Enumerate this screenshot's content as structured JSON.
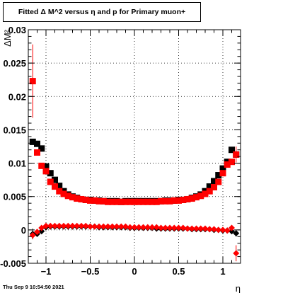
{
  "chart_data": {
    "type": "scatter",
    "title": "Fitted Δ M^2 versus η and p for Primary muon+",
    "xlabel": "η",
    "ylabel": "ΔM²",
    "xlim": [
      -1.2,
      1.2
    ],
    "ylim": [
      -0.005,
      0.03
    ],
    "grid": true,
    "x_ticks": [
      -1,
      -0.5,
      0,
      0.5,
      1
    ],
    "x_tick_labels": [
      "−1",
      "−0.5",
      "0",
      "0.5",
      "1"
    ],
    "y_ticks": [
      -0.005,
      0,
      0.005,
      0.01,
      0.015,
      0.02,
      0.025,
      0.03
    ],
    "y_tick_labels": [
      "-0.005",
      "0",
      "0.005",
      "0.01",
      "0.015",
      "0.02",
      "0.025",
      "0.03"
    ],
    "series": [
      {
        "marker": "square",
        "color": "#000000",
        "x": [
          -1.15,
          -1.1,
          -1.05,
          -1.0,
          -0.95,
          -0.9,
          -0.85,
          -0.8,
          -0.75,
          -0.7,
          -0.65,
          -0.6,
          -0.55,
          -0.5,
          -0.45,
          -0.4,
          -0.35,
          -0.3,
          -0.25,
          -0.2,
          -0.15,
          -0.1,
          -0.05,
          0.0,
          0.05,
          0.1,
          0.15,
          0.2,
          0.25,
          0.3,
          0.35,
          0.4,
          0.45,
          0.5,
          0.55,
          0.6,
          0.65,
          0.7,
          0.75,
          0.8,
          0.85,
          0.9,
          0.95,
          1.0,
          1.05,
          1.1,
          1.15
        ],
        "y": [
          0.0132,
          0.0129,
          0.0122,
          0.0095,
          0.0085,
          0.0075,
          0.0066,
          0.0058,
          0.0053,
          0.005,
          0.0048,
          0.0046,
          0.0045,
          0.0045,
          0.0044,
          0.0044,
          0.0043,
          0.0043,
          0.0043,
          0.0043,
          0.0042,
          0.0043,
          0.0043,
          0.0043,
          0.0043,
          0.0043,
          0.0043,
          0.0043,
          0.0043,
          0.0043,
          0.0044,
          0.0044,
          0.0044,
          0.0045,
          0.0045,
          0.0046,
          0.0048,
          0.005,
          0.0053,
          0.0058,
          0.0065,
          0.0073,
          0.0082,
          0.0092,
          0.0102,
          0.012,
          0.0113
        ],
        "err": [
          0.0004,
          0.0003,
          0.0003,
          0.0003,
          0.0002,
          0.0002,
          0.0002,
          0.0002,
          0.0002,
          0.0002,
          0.0002,
          0.0002,
          0.0002,
          0.0002,
          0.0002,
          0.0002,
          0.0002,
          0.0002,
          0.0002,
          0.0002,
          0.0002,
          0.0002,
          0.0002,
          0.0002,
          0.0002,
          0.0002,
          0.0002,
          0.0002,
          0.0002,
          0.0002,
          0.0002,
          0.0002,
          0.0002,
          0.0002,
          0.0002,
          0.0002,
          0.0002,
          0.0002,
          0.0002,
          0.0002,
          0.0002,
          0.0002,
          0.0002,
          0.0002,
          0.0003,
          0.0003,
          0.0004
        ]
      },
      {
        "marker": "square",
        "color": "#ff0000",
        "x": [
          -1.15,
          -1.1,
          -1.05,
          -1.0,
          -0.95,
          -0.9,
          -0.85,
          -0.8,
          -0.75,
          -0.7,
          -0.65,
          -0.6,
          -0.55,
          -0.5,
          -0.45,
          -0.4,
          -0.35,
          -0.3,
          -0.25,
          -0.2,
          -0.15,
          -0.1,
          -0.05,
          0.0,
          0.05,
          0.1,
          0.15,
          0.2,
          0.25,
          0.3,
          0.35,
          0.4,
          0.45,
          0.5,
          0.55,
          0.6,
          0.65,
          0.7,
          0.75,
          0.8,
          0.85,
          0.9,
          0.95,
          1.0,
          1.05,
          1.1,
          1.15
        ],
        "y": [
          0.0223,
          0.0116,
          0.0096,
          0.0088,
          0.0072,
          0.0065,
          0.0058,
          0.0054,
          0.0051,
          0.0049,
          0.0047,
          0.0046,
          0.0045,
          0.0044,
          0.0044,
          0.0043,
          0.0043,
          0.0042,
          0.0042,
          0.0042,
          0.0042,
          0.0042,
          0.0042,
          0.0042,
          0.0042,
          0.0042,
          0.0042,
          0.0042,
          0.0042,
          0.0043,
          0.0043,
          0.0043,
          0.0044,
          0.0044,
          0.0045,
          0.0046,
          0.0047,
          0.0049,
          0.0051,
          0.0054,
          0.0058,
          0.0064,
          0.0072,
          0.0085,
          0.0098,
          0.0102,
          0.0113
        ],
        "err": [
          0.0055,
          0.0004,
          0.0003,
          0.0003,
          0.0002,
          0.0002,
          0.0002,
          0.0002,
          0.0002,
          0.0002,
          0.0002,
          0.0002,
          0.0002,
          0.0002,
          0.0002,
          0.0002,
          0.0002,
          0.0002,
          0.0002,
          0.0002,
          0.0002,
          0.0002,
          0.0002,
          0.0002,
          0.0002,
          0.0002,
          0.0002,
          0.0002,
          0.0002,
          0.0002,
          0.0002,
          0.0002,
          0.0002,
          0.0002,
          0.0002,
          0.0002,
          0.0002,
          0.0002,
          0.0002,
          0.0002,
          0.0002,
          0.0002,
          0.0002,
          0.0003,
          0.0003,
          0.0004,
          0.0012
        ]
      },
      {
        "marker": "diamond",
        "color": "#000000",
        "x": [
          -1.15,
          -1.1,
          -1.05,
          -1.0,
          -0.95,
          -0.9,
          -0.85,
          -0.8,
          -0.75,
          -0.7,
          -0.65,
          -0.6,
          -0.55,
          -0.5,
          -0.45,
          -0.4,
          -0.35,
          -0.3,
          -0.25,
          -0.2,
          -0.15,
          -0.1,
          -0.05,
          0.0,
          0.05,
          0.1,
          0.15,
          0.2,
          0.25,
          0.3,
          0.35,
          0.4,
          0.45,
          0.5,
          0.55,
          0.6,
          0.65,
          0.7,
          0.75,
          0.8,
          0.85,
          0.9,
          0.95,
          1.0,
          1.05,
          1.1,
          1.15
        ],
        "y": [
          -0.0006,
          -0.0006,
          -0.0002,
          0.0004,
          0.0005,
          0.0005,
          0.0005,
          0.0005,
          0.0005,
          0.0005,
          0.0005,
          0.0005,
          0.0005,
          0.0005,
          0.0005,
          0.0004,
          0.0004,
          0.0004,
          0.0004,
          0.0004,
          0.0004,
          0.0004,
          0.0003,
          0.0003,
          0.0003,
          0.0003,
          0.0003,
          0.0003,
          0.0002,
          0.0002,
          0.0002,
          0.0002,
          0.0002,
          0.0002,
          0.0002,
          0.0002,
          0.0001,
          0.0001,
          0.0001,
          0.0001,
          0.0001,
          0.0,
          0.0,
          -0.0001,
          -0.0001,
          -0.0002,
          -0.0005
        ],
        "err": [
          0.0008,
          0.0004,
          0.0002,
          0.0001,
          0.0001,
          0.0001,
          0.0001,
          0.0001,
          0.0001,
          0.0001,
          0.0001,
          0.0001,
          0.0001,
          0.0001,
          0.0001,
          0.0001,
          0.0001,
          0.0001,
          0.0001,
          0.0001,
          0.0001,
          0.0001,
          0.0001,
          0.0001,
          0.0001,
          0.0001,
          0.0001,
          0.0001,
          0.0001,
          0.0001,
          0.0001,
          0.0001,
          0.0001,
          0.0001,
          0.0001,
          0.0001,
          0.0001,
          0.0001,
          0.0001,
          0.0001,
          0.0001,
          0.0001,
          0.0001,
          0.0001,
          0.0001,
          0.0002,
          0.0005
        ]
      },
      {
        "marker": "diamond",
        "color": "#ff0000",
        "x": [
          -1.15,
          -1.1,
          -1.05,
          -1.0,
          -0.95,
          -0.9,
          -0.85,
          -0.8,
          -0.75,
          -0.7,
          -0.65,
          -0.6,
          -0.55,
          -0.5,
          -0.45,
          -0.4,
          -0.35,
          -0.3,
          -0.25,
          -0.2,
          -0.15,
          -0.1,
          -0.05,
          0.0,
          0.05,
          0.1,
          0.15,
          0.2,
          0.25,
          0.3,
          0.35,
          0.4,
          0.45,
          0.5,
          0.55,
          0.6,
          0.65,
          0.7,
          0.75,
          0.8,
          0.85,
          0.9,
          0.95,
          1.0,
          1.05,
          1.1,
          1.15
        ],
        "y": [
          -0.0008,
          -0.0003,
          0.0003,
          0.0006,
          0.0006,
          0.0006,
          0.0006,
          0.0006,
          0.0006,
          0.0006,
          0.0006,
          0.0006,
          0.0006,
          0.0005,
          0.0005,
          0.0005,
          0.0005,
          0.0005,
          0.0005,
          0.0005,
          0.0005,
          0.0005,
          0.0004,
          0.0004,
          0.0004,
          0.0004,
          0.0004,
          0.0004,
          0.0004,
          0.0003,
          0.0003,
          0.0003,
          0.0003,
          0.0003,
          0.0003,
          0.0002,
          0.0002,
          0.0002,
          0.0002,
          0.0002,
          0.0001,
          0.0001,
          0.0,
          0.0,
          -0.0001,
          0.0003,
          -0.0035
        ],
        "err": [
          0.0006,
          0.0003,
          0.0002,
          0.0001,
          0.0001,
          0.0001,
          0.0001,
          0.0001,
          0.0001,
          0.0001,
          0.0001,
          0.0001,
          0.0001,
          0.0001,
          0.0001,
          0.0001,
          0.0001,
          0.0001,
          0.0001,
          0.0001,
          0.0001,
          0.0001,
          0.0001,
          0.0001,
          0.0001,
          0.0001,
          0.0001,
          0.0001,
          0.0001,
          0.0001,
          0.0001,
          0.0001,
          0.0001,
          0.0001,
          0.0001,
          0.0001,
          0.0001,
          0.0001,
          0.0001,
          0.0001,
          0.0001,
          0.0001,
          0.0001,
          0.0001,
          0.0001,
          0.0003,
          0.0012
        ]
      }
    ]
  },
  "footer": {
    "date": "Thu Sep  9 10:54:50 2021"
  }
}
